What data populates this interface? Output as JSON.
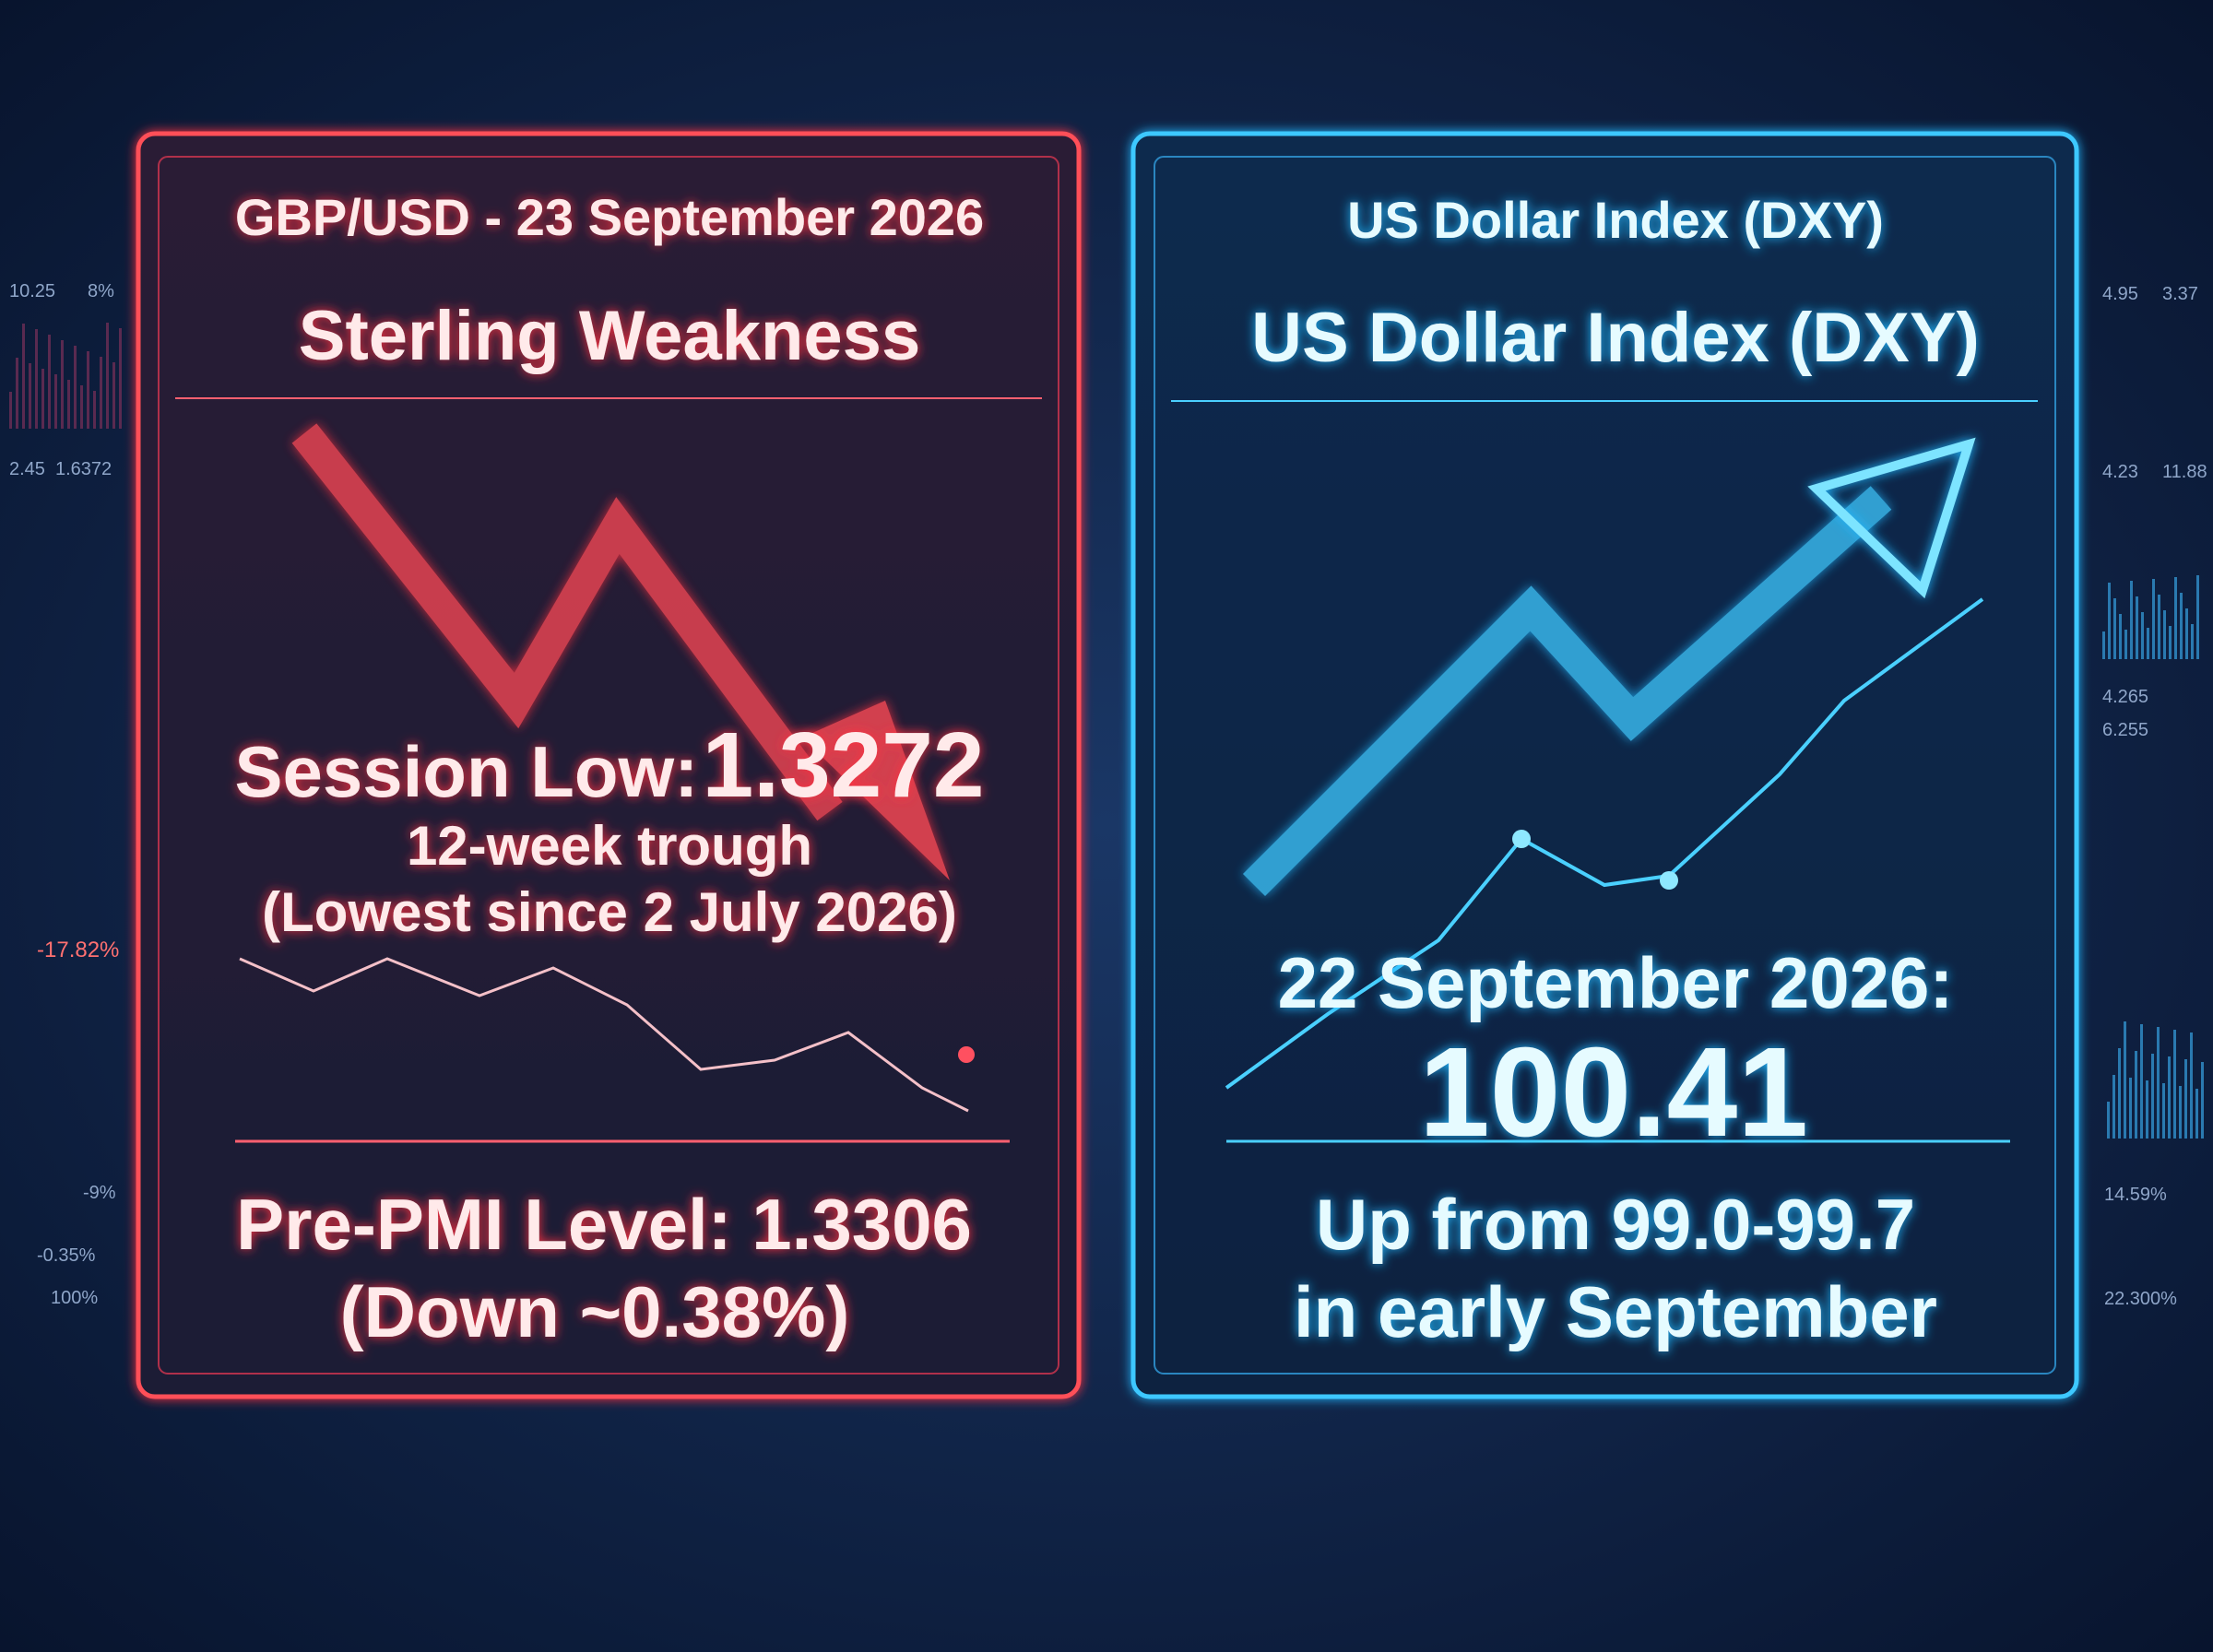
{
  "left_panel": {
    "header": "GBP/USD - 23 September 2026",
    "title": "Sterling Weakness",
    "session_low_label": "Session Low:",
    "session_low_value": "1.3272",
    "trough": "12-week trough",
    "lowest_since": "(Lowest since 2 July 2026)",
    "pre_pmi": "Pre-PMI Level: 1.3306",
    "change": "(Down ~0.38%)"
  },
  "right_panel": {
    "header": "US Dollar Index (DXY)",
    "title": "US Dollar Index (DXY)",
    "date": "22 September 2026:",
    "value": "100.41",
    "range_line1": "Up from 99.0-99.7",
    "range_line2": "in early September"
  },
  "side_figures": {
    "left": [
      "10.25",
      "8%",
      "2.45",
      "1.6372",
      "-17.82%",
      "-9%",
      "-0.35%",
      "100%"
    ],
    "right": [
      "4.95",
      "3.37",
      "4.23",
      "11.88",
      "4.265",
      "6.255",
      "14.59%",
      "22.300%"
    ]
  }
}
